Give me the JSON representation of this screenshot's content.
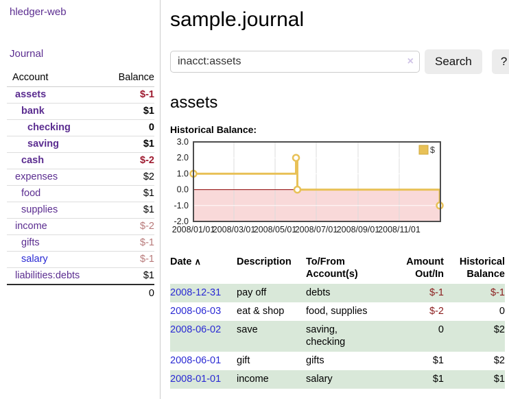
{
  "colors": {
    "link_purple": "#5b2d90",
    "link_blue": "#2a2ad4",
    "negative_strong": "#9e1b30",
    "negative_soft": "#b87a7a",
    "table_negative": "#8b1d1d",
    "row_stripe_green": "#d9e8d9",
    "chart_gold": "#e8c157",
    "chart_negative_fill": "#f9d9d9",
    "chart_zero_line": "#8b0000"
  },
  "sidebar": {
    "app_link": "hledger-web",
    "journal_link": "Journal",
    "table": {
      "account_header": "Account",
      "balance_header": "Balance",
      "accounts": [
        {
          "label": "assets",
          "depth": 1,
          "bold": true,
          "balance": "$-1",
          "balance_class": "neg-strong"
        },
        {
          "label": "bank",
          "depth": 2,
          "bold": true,
          "balance": "$1",
          "balance_class": ""
        },
        {
          "label": "checking",
          "depth": 3,
          "bold": true,
          "balance": "0",
          "balance_class": ""
        },
        {
          "label": "saving",
          "depth": 3,
          "bold": true,
          "balance": "$1",
          "balance_class": ""
        },
        {
          "label": "cash",
          "depth": 2,
          "bold": true,
          "balance": "$-2",
          "balance_class": "neg-strong"
        },
        {
          "label": "expenses",
          "depth": 1,
          "bold": false,
          "balance": "$2",
          "balance_class": ""
        },
        {
          "label": "food",
          "depth": 2,
          "bold": false,
          "balance": "$1",
          "balance_class": ""
        },
        {
          "label": "supplies",
          "depth": 2,
          "bold": false,
          "balance": "$1",
          "balance_class": ""
        },
        {
          "label": "income",
          "depth": 1,
          "bold": false,
          "balance": "$-2",
          "balance_class": "neg-soft"
        },
        {
          "label": "gifts",
          "depth": 2,
          "bold": false,
          "balance": "$-1",
          "balance_class": "neg-soft"
        },
        {
          "label": "salary",
          "depth": 2,
          "bold": false,
          "balance": "$-1",
          "balance_class": "neg-soft",
          "blue_link": true
        },
        {
          "label": "liabilities:debts",
          "depth": 1,
          "bold": false,
          "balance": "$1",
          "balance_class": ""
        }
      ],
      "total": "0"
    }
  },
  "main": {
    "title": "sample.journal",
    "search": {
      "value": "inacct:assets",
      "clear_icon": "×",
      "search_button": "Search",
      "help_button": "?"
    },
    "account_heading": "assets",
    "chart_label": "Historical Balance:",
    "register": {
      "headers": {
        "date": "Date",
        "sort_arrow": "∧",
        "description": "Description",
        "to_from": "To/From Account(s)",
        "amount": "Amount Out/In",
        "balance": "Historical Balance"
      },
      "rows": [
        {
          "date": "2008-12-31",
          "description": "pay off",
          "to_from": "debts",
          "amount": "$-1",
          "amount_neg": true,
          "balance": "$-1",
          "balance_neg": true
        },
        {
          "date": "2008-06-03",
          "description": "eat & shop",
          "to_from": "food, supplies",
          "amount": "$-2",
          "amount_neg": true,
          "balance": "0",
          "balance_neg": false
        },
        {
          "date": "2008-06-02",
          "description": "save",
          "to_from": "saving, checking",
          "amount": "0",
          "amount_neg": false,
          "balance": "$2",
          "balance_neg": false
        },
        {
          "date": "2008-06-01",
          "description": "gift",
          "to_from": "gifts",
          "amount": "$1",
          "amount_neg": false,
          "balance": "$2",
          "balance_neg": false
        },
        {
          "date": "2008-01-01",
          "description": "income",
          "to_from": "salary",
          "amount": "$1",
          "amount_neg": false,
          "balance": "$1",
          "balance_neg": false
        }
      ]
    }
  },
  "chart_data": {
    "type": "line",
    "title": "Historical Balance:",
    "step": true,
    "xlim_dates": [
      "2008-01-01",
      "2009-01-01"
    ],
    "ylim": [
      -2,
      3
    ],
    "y_ticks": [
      "3.0",
      "2.0",
      "1.0",
      "0.0",
      "-1.0",
      "-2.0"
    ],
    "x_ticks": [
      "2008/01/01",
      "2008/03/01",
      "2008/05/01",
      "2008/07/01",
      "2008/09/01",
      "2008/11/01"
    ],
    "grid": true,
    "negative_fill": "#f9d9d9",
    "zero_line_color": "#8b0000",
    "legend": {
      "label": "$",
      "position": "top-right"
    },
    "series": [
      {
        "name": "$",
        "color": "#e8c157",
        "points": [
          {
            "date": "2008-01-01",
            "value": 1
          },
          {
            "date": "2008-06-01",
            "value": 2
          },
          {
            "date": "2008-06-03",
            "value": 0
          },
          {
            "date": "2008-12-31",
            "value": -1
          }
        ]
      }
    ]
  }
}
